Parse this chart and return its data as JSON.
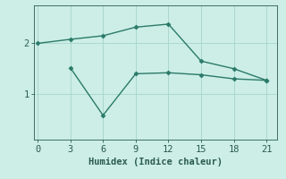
{
  "line1": {
    "x": [
      0,
      3,
      6,
      9,
      12,
      15,
      18,
      21
    ],
    "y": [
      2.0,
      2.08,
      2.15,
      2.32,
      2.38,
      1.65,
      1.5,
      1.27
    ],
    "color": "#2a7a6a",
    "linewidth": 1.0,
    "marker": "D",
    "markersize": 2.5
  },
  "line2": {
    "x": [
      3,
      6,
      9,
      12,
      15,
      18,
      21
    ],
    "y": [
      1.52,
      0.58,
      1.4,
      1.42,
      1.38,
      1.3,
      1.27
    ],
    "color": "#2a7a6a",
    "linewidth": 1.0,
    "marker": "D",
    "markersize": 2.5
  },
  "xlabel": "Humidex (Indice chaleur)",
  "xticks": [
    0,
    3,
    6,
    9,
    12,
    15,
    18,
    21
  ],
  "yticks": [
    1,
    2
  ],
  "xlim": [
    -0.3,
    22.0
  ],
  "ylim": [
    0.1,
    2.75
  ],
  "background_color": "#cceee6",
  "grid_color": "#aad8ce",
  "font_color": "#2a5a50",
  "xlabel_fontsize": 7.5,
  "tick_fontsize": 7.5
}
